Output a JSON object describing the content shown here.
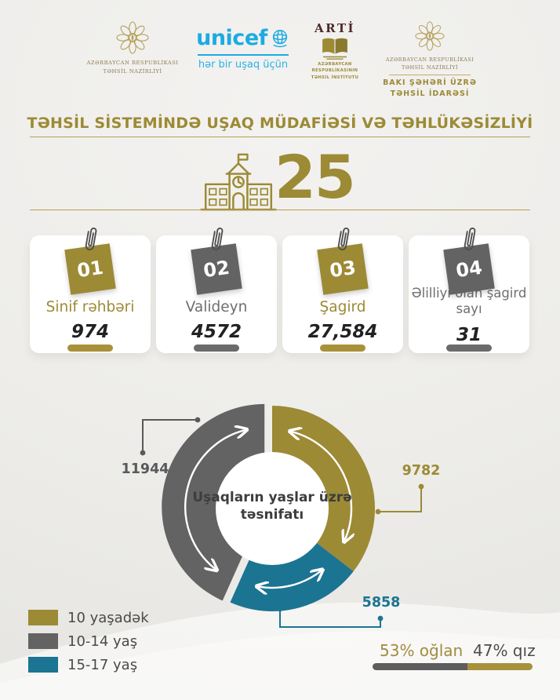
{
  "colors": {
    "gold": "#9c8a35",
    "gray": "#636363",
    "teal": "#1b7492",
    "unicef_blue": "#1cabe2",
    "background": "#efeeec"
  },
  "header": {
    "ministry": {
      "line1": "AZƏRBAYCAN RESPUBLİKASI",
      "line2": "TƏHSİL NAZİRLİYİ"
    },
    "unicef": {
      "wordmark": "unicef",
      "tagline": "hər bir uşaq üçün"
    },
    "arti": {
      "wordmark": "ARTİ",
      "line1": "AZƏRBAYCAN RESPUBLİKASININ",
      "line2": "TƏHSİL İNSTİTUTU"
    },
    "baku": {
      "line1": "AZƏRBAYCAN RESPUBLİKASI",
      "line2": "TƏHSİL NAZİRLİYİ",
      "line3": "BAKI ŞƏHƏRİ ÜZRƏ",
      "line4": "TƏHSİL İDARƏSİ"
    }
  },
  "title": "TƏHSİL SİSTEMİNDƏ UŞAQ MÜDAFİƏSİ VƏ TƏHLÜKƏSİZLİYİ",
  "school_count": "25",
  "cards": [
    {
      "number": "01",
      "label": "Sinif rəhbəri",
      "value": "974",
      "accent": "gold"
    },
    {
      "number": "02",
      "label": "Valideyn",
      "value": "4572",
      "accent": "gray"
    },
    {
      "number": "03",
      "label": "Şagird",
      "value": "27,584",
      "accent": "gold"
    },
    {
      "number": "04",
      "label": "Əlilliyi olan şagird sayı",
      "value": "31",
      "accent": "gray"
    }
  ],
  "chart_data": {
    "type": "pie",
    "donut": true,
    "title": "Uşaqların yaşlar üzrə təsnifatı",
    "total": 27584,
    "start_angle_deg": 0,
    "direction": "clockwise",
    "legend_position": "bottom-left",
    "segments": [
      {
        "label": "10 yaşadək",
        "value": 9782,
        "color": "#9c8a35",
        "exploded": false
      },
      {
        "label": "15-17 yaş",
        "value": 5858,
        "color": "#1b7492",
        "exploded": false
      },
      {
        "label": "10-14 yaş",
        "value": 11944,
        "color": "#636363",
        "exploded": true
      }
    ]
  },
  "legend": [
    {
      "label": "10 yaşadək",
      "color": "#9c8a35"
    },
    {
      "label": "10-14 yaş",
      "color": "#636363"
    },
    {
      "label": "15-17 yaş",
      "color": "#1b7492"
    }
  ],
  "gender": {
    "left_label": "53% oğlan",
    "right_label": "47% qız",
    "left_percent": 53,
    "right_percent": 47,
    "bar_left_color": "#5d5d5d",
    "bar_right_color": "#a8913a"
  }
}
